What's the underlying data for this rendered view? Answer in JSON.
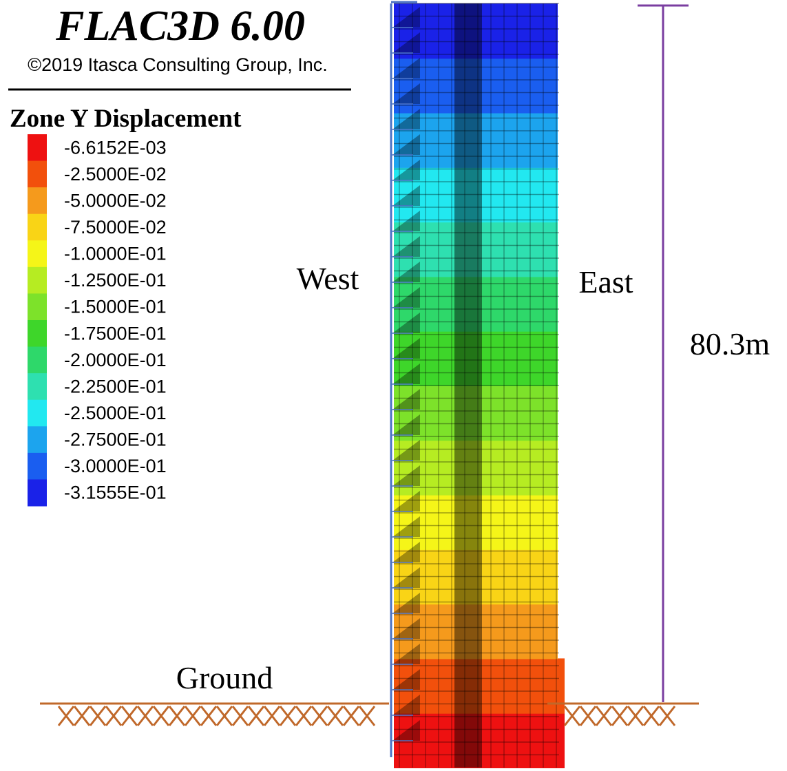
{
  "header": {
    "title": "FLAC3D 6.00",
    "copyright": "©2019 Itasca Consulting Group, Inc."
  },
  "legend": {
    "title": "Zone Y Displacement",
    "entries": [
      {
        "label": "-6.6152E-03",
        "color": "#ee1111"
      },
      {
        "label": "-2.5000E-02",
        "color": "#f2500c"
      },
      {
        "label": "-5.0000E-02",
        "color": "#f59a1c"
      },
      {
        "label": "-7.5000E-02",
        "color": "#f9d416"
      },
      {
        "label": "-1.0000E-01",
        "color": "#f5f518"
      },
      {
        "label": "-1.2500E-01",
        "color": "#b6ec22"
      },
      {
        "label": "-1.5000E-01",
        "color": "#7de22a"
      },
      {
        "label": "-1.7500E-01",
        "color": "#3ed62a"
      },
      {
        "label": "-2.0000E-01",
        "color": "#2ed86a"
      },
      {
        "label": "-2.2500E-01",
        "color": "#2ee0b0"
      },
      {
        "label": "-2.5000E-01",
        "color": "#22e8f0"
      },
      {
        "label": "-2.7500E-01",
        "color": "#1ca4ee"
      },
      {
        "label": "-3.0000E-01",
        "color": "#1a5ef0"
      },
      {
        "label": "-3.1555E-01",
        "color": "#1a22e8"
      }
    ]
  },
  "annotations": {
    "west": "West",
    "east": "East",
    "ground": "Ground",
    "height": "80.3m"
  }
}
